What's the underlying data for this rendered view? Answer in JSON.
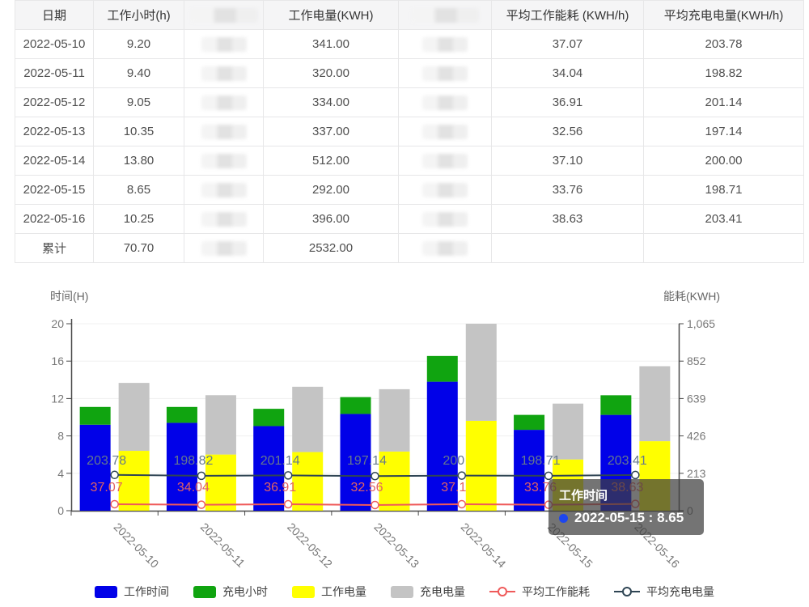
{
  "table": {
    "headers": [
      "日期",
      "工作小时(h)",
      "",
      "工作电量(KWH)",
      "",
      "平均工作能耗 (KWH/h)",
      "平均充电电量(KWH/h)"
    ],
    "redacted_columns": [
      2,
      4
    ],
    "rows": [
      [
        "2022-05-10",
        "9.20",
        "",
        "341.00",
        "",
        "37.07",
        "203.78"
      ],
      [
        "2022-05-11",
        "9.40",
        "",
        "320.00",
        "",
        "34.04",
        "198.82"
      ],
      [
        "2022-05-12",
        "9.05",
        "",
        "334.00",
        "",
        "36.91",
        "201.14"
      ],
      [
        "2022-05-13",
        "10.35",
        "",
        "337.00",
        "",
        "32.56",
        "197.14"
      ],
      [
        "2022-05-14",
        "13.80",
        "",
        "512.00",
        "",
        "37.10",
        "200.00"
      ],
      [
        "2022-05-15",
        "8.65",
        "",
        "292.00",
        "",
        "33.76",
        "198.71"
      ],
      [
        "2022-05-16",
        "10.25",
        "",
        "396.00",
        "",
        "38.63",
        "203.41"
      ],
      [
        "累计",
        "70.70",
        "",
        "2532.00",
        "",
        "",
        ""
      ]
    ]
  },
  "chart": {
    "tooltip": {
      "series": "工作时间",
      "value_text": "2022-05-15 : 8.65"
    }
  },
  "colors": {
    "work_time": "#0101e8",
    "charge_hours": "#10a410",
    "work_kwh": "#ffff00",
    "charge_kwh": "#c4c4c4",
    "avg_work_line": "#ef5a5a",
    "avg_charge_line": "#2f4554",
    "avg_work_label": "#e06262",
    "avg_charge_label": "#66798d",
    "tooltip_dot": "#1d46ee",
    "axis_line": "#4a4a4a",
    "tick_label": "#777777",
    "axis_name": "#666666",
    "gridline": "#f0f0f0"
  },
  "chart_data": {
    "type": "bar",
    "subtype": "stacked bars + lines, dual axis",
    "categories": [
      "2022-05-10",
      "2022-05-11",
      "2022-05-12",
      "2022-05-13",
      "2022-05-14",
      "2022-05-15",
      "2022-05-16"
    ],
    "left_axis": {
      "name": "时间(H)",
      "min": 0,
      "max": 20,
      "ticks": [
        0,
        4,
        8,
        12,
        16,
        20
      ],
      "tick_labels": [
        "0",
        "4",
        "8",
        "12",
        "16",
        "20"
      ]
    },
    "right_axis": {
      "name": "能耗(KWH)",
      "min": 0,
      "max": 1065,
      "ticks": [
        0,
        213,
        426,
        639,
        852,
        1065
      ],
      "tick_labels": [
        "0",
        "213",
        "426",
        "639",
        "852",
        "1,065"
      ]
    },
    "series": [
      {
        "name": "工作时间",
        "type": "bar",
        "stack": "hours",
        "axis": "left",
        "colorKey": "work_time",
        "values": [
          9.2,
          9.4,
          9.05,
          10.35,
          13.8,
          8.65,
          10.25
        ]
      },
      {
        "name": "充电小时",
        "type": "bar",
        "stack": "hours",
        "axis": "left",
        "colorKey": "charge_hours",
        "values": [
          1.9,
          1.7,
          1.85,
          1.8,
          2.75,
          1.6,
          2.1
        ],
        "estimated": true
      },
      {
        "name": "工作电量",
        "type": "bar",
        "stack": "energy",
        "axis": "right",
        "colorKey": "work_kwh",
        "values": [
          341,
          320,
          334,
          337,
          512,
          292,
          396
        ]
      },
      {
        "name": "充电电量",
        "type": "bar",
        "stack": "energy",
        "axis": "right",
        "colorKey": "charge_kwh",
        "values": [
          387,
          338,
          372,
          355,
          553,
          318,
          427
        ],
        "estimated": true
      },
      {
        "name": "平均工作能耗",
        "type": "line",
        "axis": "right",
        "colorKey": "avg_work_line",
        "labelColorKey": "avg_work_label",
        "values": [
          37.07,
          34.04,
          36.91,
          32.56,
          37.1,
          33.76,
          38.63
        ],
        "labels": [
          "37.07",
          "34.04",
          "36.91",
          "32.56",
          "37.1",
          "33.76",
          "38.63"
        ]
      },
      {
        "name": "平均充电电量",
        "type": "line",
        "axis": "right",
        "colorKey": "avg_charge_line",
        "labelColorKey": "avg_charge_label",
        "values": [
          203.78,
          198.82,
          201.14,
          197.14,
          200,
          198.71,
          203.41
        ],
        "labels": [
          "203.78",
          "198.82",
          "201.14",
          "197.14",
          "200",
          "198.71",
          "203.41"
        ]
      }
    ],
    "legend_position": "bottom",
    "grid": true
  }
}
